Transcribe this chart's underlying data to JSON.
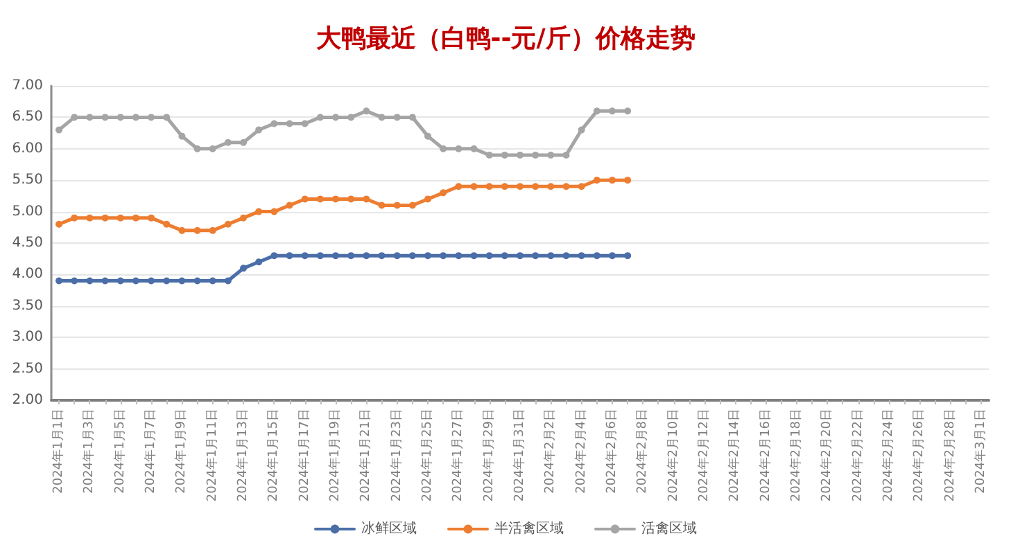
{
  "chart_data": {
    "type": "line",
    "title": "大鸭最近（白鸭--元/斤）价格走势",
    "categories": [
      "2024年1月1日",
      null,
      "2024年1月3日",
      null,
      "2024年1月5日",
      null,
      "2024年1月7日",
      null,
      "2024年1月9日",
      null,
      "2024年1月11日",
      null,
      "2024年1月13日",
      null,
      "2024年1月15日",
      null,
      "2024年1月17日",
      null,
      "2024年1月19日",
      null,
      "2024年1月21日",
      null,
      "2024年1月23日",
      null,
      "2024年1月25日",
      null,
      "2024年1月27日",
      null,
      "2024年1月29日",
      null,
      "2024年1月31日",
      null,
      "2024年2月2日",
      null,
      "2024年2月4日",
      null,
      "2024年2月6日",
      null,
      "2024年2月8日",
      null,
      "2024年2月10日",
      null,
      "2024年2月12日",
      null,
      "2024年2月14日",
      null,
      "2024年2月16日",
      null,
      "2024年2月18日",
      null,
      "2024年2月20日",
      null,
      "2024年2月22日",
      null,
      "2024年2月24日",
      null,
      "2024年2月26日",
      null,
      "2024年2月28日",
      null,
      "2024年3月1日"
    ],
    "series": [
      {
        "name": "冰鲜区域",
        "color": "#4a6ea8",
        "values": [
          3.9,
          3.9,
          3.9,
          3.9,
          3.9,
          3.9,
          3.9,
          3.9,
          3.9,
          3.9,
          3.9,
          3.9,
          4.1,
          4.2,
          4.3,
          4.3,
          4.3,
          4.3,
          4.3,
          4.3,
          4.3,
          4.3,
          4.3,
          4.3,
          4.3,
          4.3,
          4.3,
          4.3,
          4.3,
          4.3,
          4.3,
          4.3,
          4.3,
          4.3,
          4.3,
          4.3,
          4.3,
          4.3,
          null,
          null,
          null,
          null,
          null,
          null,
          null,
          null,
          null,
          null,
          null,
          null,
          null,
          null,
          null,
          null,
          null,
          null,
          null,
          null,
          null,
          null,
          null
        ]
      },
      {
        "name": "半活禽区域",
        "color": "#ed7d31",
        "values": [
          4.8,
          4.9,
          4.9,
          4.9,
          4.9,
          4.9,
          4.9,
          4.8,
          4.7,
          4.7,
          4.7,
          4.8,
          4.9,
          5.0,
          5.0,
          5.1,
          5.2,
          5.2,
          5.2,
          5.2,
          5.2,
          5.1,
          5.1,
          5.1,
          5.2,
          5.3,
          5.4,
          5.4,
          5.4,
          5.4,
          5.4,
          5.4,
          5.4,
          5.4,
          5.4,
          5.5,
          5.5,
          5.5,
          null,
          null,
          null,
          null,
          null,
          null,
          null,
          null,
          null,
          null,
          null,
          null,
          null,
          null,
          null,
          null,
          null,
          null,
          null,
          null,
          null,
          null,
          null
        ]
      },
      {
        "name": "活禽区域",
        "color": "#a5a5a5",
        "values": [
          6.3,
          6.5,
          6.5,
          6.5,
          6.5,
          6.5,
          6.5,
          6.5,
          6.2,
          6.0,
          6.0,
          6.1,
          6.1,
          6.3,
          6.4,
          6.4,
          6.4,
          6.5,
          6.5,
          6.5,
          6.6,
          6.5,
          6.5,
          6.5,
          6.2,
          6.0,
          6.0,
          6.0,
          5.9,
          5.9,
          5.9,
          5.9,
          5.9,
          5.9,
          6.3,
          6.6,
          6.6,
          6.6,
          null,
          null,
          null,
          null,
          null,
          null,
          null,
          null,
          null,
          null,
          null,
          null,
          null,
          null,
          null,
          null,
          null,
          null,
          null,
          null,
          null,
          null,
          null
        ]
      }
    ],
    "ylim": [
      2,
      7
    ],
    "yticks": [
      {
        "value": 2,
        "label": "2.00"
      },
      {
        "value": 2.5,
        "label": "2.50"
      },
      {
        "value": 3,
        "label": "3.00"
      },
      {
        "value": 3.5,
        "label": "3.50"
      },
      {
        "value": 4,
        "label": "4.00"
      },
      {
        "value": 4.5,
        "label": "4.50"
      },
      {
        "value": 5,
        "label": "5.00"
      },
      {
        "value": 5.5,
        "label": "5.50"
      },
      {
        "value": 6,
        "label": "6.00"
      },
      {
        "value": 6.5,
        "label": "6.50"
      },
      {
        "value": 7,
        "label": "7.00"
      }
    ],
    "grid": "y",
    "legend": "bottom",
    "marker": "circle",
    "line_style": "solid"
  }
}
